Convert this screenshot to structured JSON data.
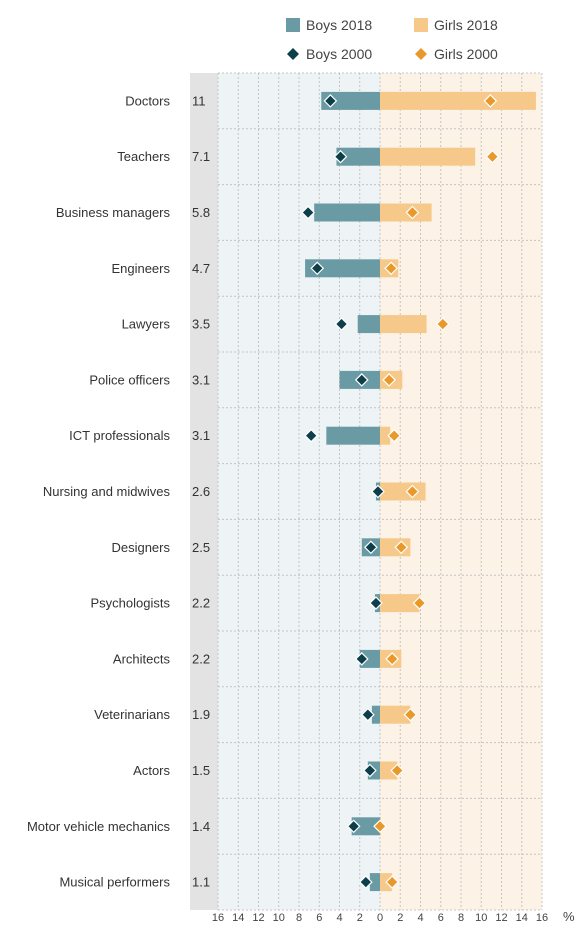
{
  "chart_data": {
    "type": "bar",
    "orientation": "horizontal-diverging",
    "unit": "%",
    "legend": {
      "boys_2018": "Boys 2018",
      "girls_2018": "Girls 2018",
      "boys_2000": "Boys 2000",
      "girls_2000": "Girls 2000",
      "placement": "top"
    },
    "x_ticks": [
      "16",
      "14",
      "12",
      "10",
      "8",
      "6",
      "4",
      "2",
      "0",
      "2",
      "4",
      "6",
      "8",
      "10",
      "12",
      "14",
      "16"
    ],
    "xlim": [
      -16,
      16
    ],
    "grid": true,
    "categories": [
      "Doctors",
      "Teachers",
      "Business managers",
      "Engineers",
      "Lawyers",
      "Police officers",
      "ICT professionals",
      "Nursing and midwives",
      "Designers",
      "Psychologists",
      "Architects",
      "Veterinarians",
      "Actors",
      "Motor vehicle mechanics",
      "Musical performers"
    ],
    "totals": [
      "11",
      "7.1",
      "5.8",
      "4.7",
      "3.5",
      "3.1",
      "3.1",
      "2.6",
      "2.5",
      "2.2",
      "2.2",
      "1.9",
      "1.5",
      "1.4",
      "1.1"
    ],
    "series": [
      {
        "name": "Boys 2018",
        "kind": "bar",
        "values": [
          5.8,
          4.3,
          6.5,
          7.4,
          2.2,
          4.0,
          5.3,
          0.4,
          1.8,
          0.5,
          2.0,
          0.8,
          1.2,
          2.8,
          1.0
        ]
      },
      {
        "name": "Girls 2018",
        "kind": "bar",
        "values": [
          15.4,
          9.4,
          5.1,
          1.8,
          4.6,
          2.2,
          1.0,
          4.5,
          3.0,
          3.9,
          2.1,
          3.0,
          1.7,
          0.1,
          1.2
        ]
      },
      {
        "name": "Boys 2000",
        "kind": "marker",
        "values": [
          4.9,
          3.9,
          7.1,
          6.2,
          3.8,
          1.8,
          6.8,
          0.2,
          0.9,
          0.4,
          1.8,
          1.2,
          1.0,
          2.6,
          1.4
        ]
      },
      {
        "name": "Girls 2000",
        "kind": "marker",
        "values": [
          10.9,
          11.1,
          3.2,
          1.1,
          6.2,
          0.9,
          1.4,
          3.2,
          2.1,
          3.9,
          1.2,
          3.0,
          1.7,
          0.0,
          1.2
        ]
      }
    ],
    "colors": {
      "boys_bar": "#6a9ba4",
      "girls_bar": "#f6c98b",
      "boys_marker": "#0d3f4a",
      "girls_marker": "#e9982a",
      "boys_bg": "#eef4f6",
      "girls_bg": "#fdf2e6",
      "label_col_bg": "#e3e3e3",
      "grid": "#c4c4c4"
    }
  }
}
